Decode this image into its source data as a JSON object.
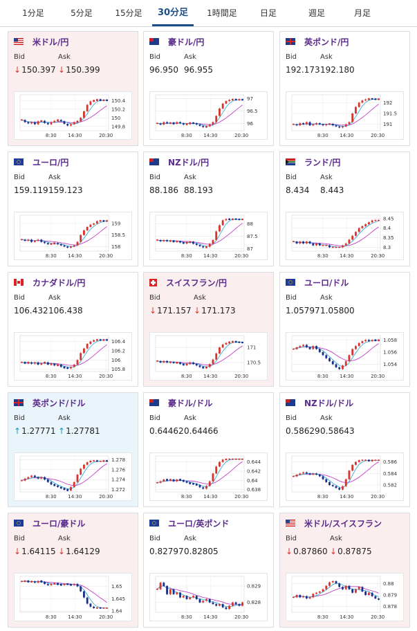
{
  "tabs": [
    {
      "label": "1分足",
      "active": false
    },
    {
      "label": "5分足",
      "active": false
    },
    {
      "label": "15分足",
      "active": false
    },
    {
      "label": "30分足",
      "active": true
    },
    {
      "label": "1時間足",
      "active": false
    },
    {
      "label": "日足",
      "active": false
    },
    {
      "label": "週足",
      "active": false
    },
    {
      "label": "月足",
      "active": false
    }
  ],
  "labels": {
    "bid": "Bid",
    "ask": "Ask"
  },
  "colors": {
    "up": "#d8342c",
    "down": "#1a2f8a",
    "ma": "#c23ec9",
    "ma2": "#1fa5d8",
    "arrow_down": "#d8342c",
    "arrow_up": "#1f8ec3"
  },
  "pairs": [
    {
      "name": "米ドル/円",
      "flag": "us",
      "bid": "150.397",
      "ask": "150.399",
      "dir": "down",
      "chart_data": {
        "type": "line",
        "x_ticks": [
          "8:30",
          "14:30",
          "20:30"
        ],
        "y_ticks": [
          "150.4",
          "150.2",
          "150",
          "149.8"
        ],
        "ylim": [
          149.7,
          150.5
        ],
        "series": [
          {
            "values": [
              149.95,
              149.9,
              149.87,
              149.9,
              149.85,
              149.92,
              149.93,
              149.88,
              149.85,
              149.9,
              149.93,
              149.95,
              149.92,
              149.86,
              149.82,
              149.85,
              149.9,
              149.92,
              150.0,
              150.15,
              150.3,
              150.38,
              150.4,
              150.42,
              150.4,
              150.41,
              150.4
            ]
          }
        ]
      }
    },
    {
      "name": "豪ドル/円",
      "flag": "au",
      "bid": "96.950",
      "ask": "96.955",
      "dir": "none",
      "chart_data": {
        "type": "line",
        "x_ticks": [
          "8:30",
          "14:30",
          "20:30"
        ],
        "y_ticks": [
          "97",
          "96.5",
          "96"
        ],
        "ylim": [
          95.7,
          97.1
        ],
        "series": [
          {
            "values": [
              96.0,
              95.95,
              96.05,
              96.0,
              96.02,
              95.98,
              96.05,
              96.0,
              95.95,
              95.98,
              96.02,
              96.0,
              95.95,
              95.9,
              95.85,
              95.88,
              95.95,
              96.05,
              96.3,
              96.6,
              96.8,
              96.9,
              96.95,
              96.97,
              96.95,
              96.96,
              96.95
            ]
          }
        ]
      }
    },
    {
      "name": "英ポンド/円",
      "flag": "gb",
      "bid": "192.173",
      "ask": "192.180",
      "dir": "none",
      "chart_data": {
        "type": "line",
        "x_ticks": [
          "8:30",
          "14:30",
          "20:30"
        ],
        "y_ticks": [
          "192",
          "191.5",
          "191"
        ],
        "ylim": [
          190.7,
          192.3
        ],
        "series": [
          {
            "values": [
              191.0,
              190.95,
              191.05,
              191.0,
              191.1,
              190.95,
              191.0,
              191.05,
              191.0,
              190.95,
              191.0,
              191.02,
              190.95,
              190.9,
              190.85,
              190.9,
              191.0,
              191.1,
              191.5,
              191.8,
              192.0,
              192.1,
              192.15,
              192.18,
              192.17,
              192.15,
              192.17
            ]
          }
        ]
      }
    },
    {
      "name": "ユーロ/円",
      "flag": "eu",
      "bid": "159.119",
      "ask": "159.123",
      "dir": "none",
      "chart_data": {
        "type": "line",
        "x_ticks": [
          "8:30",
          "14:30",
          "20:30"
        ],
        "y_ticks": [
          "159",
          "158.5",
          "158"
        ],
        "ylim": [
          157.8,
          159.3
        ],
        "series": [
          {
            "values": [
              158.3,
              158.25,
              158.3,
              158.2,
              158.25,
              158.3,
              158.2,
              158.15,
              158.1,
              158.12,
              158.15,
              158.1,
              158.05,
              158.0,
              157.95,
              158.0,
              158.05,
              158.2,
              158.5,
              158.7,
              158.85,
              158.95,
              159.0,
              159.1,
              159.12,
              159.1,
              159.12
            ]
          }
        ]
      }
    },
    {
      "name": "NZドル/円",
      "flag": "nz",
      "bid": "88.186",
      "ask": "88.193",
      "dir": "none",
      "chart_data": {
        "type": "line",
        "x_ticks": [
          "8:30",
          "14:30",
          "20:30"
        ],
        "y_ticks": [
          "88",
          "87.5",
          "87"
        ],
        "ylim": [
          86.9,
          88.3
        ],
        "series": [
          {
            "values": [
              87.35,
              87.3,
              87.35,
              87.3,
              87.32,
              87.28,
              87.3,
              87.25,
              87.22,
              87.25,
              87.28,
              87.2,
              87.15,
              87.1,
              87.05,
              87.08,
              87.2,
              87.35,
              87.7,
              87.95,
              88.15,
              88.2,
              88.18,
              88.2,
              88.19,
              88.18,
              88.19
            ]
          }
        ]
      }
    },
    {
      "name": "ランド/円",
      "flag": "za",
      "bid": "8.434",
      "ask": "8.443",
      "dir": "none",
      "chart_data": {
        "type": "line",
        "x_ticks": [
          "8:30",
          "14:30",
          "20:30"
        ],
        "y_ticks": [
          "8.45",
          "8.4",
          "8.35",
          "8.3"
        ],
        "ylim": [
          8.28,
          8.46
        ],
        "series": [
          {
            "values": [
              8.33,
              8.32,
              8.33,
              8.32,
              8.33,
              8.32,
              8.31,
              8.32,
              8.31,
              8.31,
              8.31,
              8.3,
              8.3,
              8.3,
              8.3,
              8.31,
              8.32,
              8.34,
              8.36,
              8.38,
              8.4,
              8.41,
              8.42,
              8.43,
              8.44,
              8.44,
              8.44
            ]
          }
        ]
      }
    },
    {
      "name": "カナダドル/円",
      "flag": "ca",
      "bid": "106.432",
      "ask": "106.438",
      "dir": "none",
      "chart_data": {
        "type": "line",
        "x_ticks": [
          "8:30",
          "14:30",
          "20:30"
        ],
        "y_ticks": [
          "106.4",
          "106.2",
          "106",
          "105.8"
        ],
        "ylim": [
          105.75,
          106.5
        ],
        "series": [
          {
            "values": [
              105.95,
              105.93,
              105.95,
              105.92,
              105.95,
              105.9,
              105.93,
              105.95,
              105.9,
              105.92,
              105.88,
              105.9,
              105.85,
              105.83,
              105.82,
              105.85,
              105.9,
              106.0,
              106.15,
              106.25,
              106.35,
              106.4,
              106.43,
              106.44,
              106.43,
              106.44,
              106.43
            ]
          }
        ]
      }
    },
    {
      "name": "スイスフラン/円",
      "flag": "ch",
      "bid": "171.157",
      "ask": "171.173",
      "dir": "down",
      "chart_data": {
        "type": "line",
        "x_ticks": [
          "8:30",
          "14:30",
          "20:30"
        ],
        "y_ticks": [
          "171",
          "170.5"
        ],
        "ylim": [
          170.2,
          171.35
        ],
        "series": [
          {
            "values": [
              170.55,
              170.5,
              170.55,
              170.5,
              170.52,
              170.48,
              170.5,
              170.45,
              170.42,
              170.45,
              170.5,
              170.45,
              170.4,
              170.35,
              170.32,
              170.35,
              170.45,
              170.6,
              170.8,
              171.0,
              171.1,
              171.15,
              171.18,
              171.2,
              171.18,
              171.17,
              171.16
            ]
          }
        ]
      }
    },
    {
      "name": "ユーロ/ドル",
      "flag": "eu",
      "bid": "1.05797",
      "ask": "1.05800",
      "dir": "none",
      "chart_data": {
        "type": "line",
        "x_ticks": [
          "8:30",
          "14:30",
          "20:30"
        ],
        "y_ticks": [
          "1.058",
          "1.056",
          "1.054"
        ],
        "ylim": [
          1.0528,
          1.0585
        ],
        "series": [
          {
            "values": [
              1.0565,
              1.0568,
              1.057,
              1.0572,
              1.0568,
              1.0565,
              1.057,
              1.0565,
              1.056,
              1.0555,
              1.055,
              1.0545,
              1.054,
              1.0535,
              1.0532,
              1.0538,
              1.0545,
              1.0555,
              1.0565,
              1.057,
              1.0575,
              1.0578,
              1.058,
              1.0578,
              1.058,
              1.0579,
              1.058
            ]
          }
        ]
      }
    },
    {
      "name": "英ポンド/ドル",
      "flag": "gb",
      "bid": "1.27771",
      "ask": "1.27781",
      "dir": "up",
      "chart_data": {
        "type": "line",
        "x_ticks": [
          "8:30",
          "14:30",
          "20:30"
        ],
        "y_ticks": [
          "1.278",
          "1.276",
          "1.274",
          "1.272"
        ],
        "ylim": [
          1.2715,
          1.2785
        ],
        "series": [
          {
            "values": [
              1.2738,
              1.2742,
              1.2745,
              1.2748,
              1.2745,
              1.2742,
              1.2745,
              1.274,
              1.2735,
              1.273,
              1.2728,
              1.2725,
              1.2722,
              1.272,
              1.2718,
              1.2725,
              1.2735,
              1.275,
              1.2762,
              1.277,
              1.2775,
              1.2778,
              1.2778,
              1.2777,
              1.2777,
              1.2778,
              1.2777
            ]
          }
        ]
      }
    },
    {
      "name": "豪ドル/ドル",
      "flag": "au",
      "bid": "0.64462",
      "ask": "0.64466",
      "dir": "none",
      "chart_data": {
        "type": "line",
        "x_ticks": [
          "8:30",
          "14:30",
          "20:30"
        ],
        "y_ticks": [
          "0.644",
          "0.642",
          "0.64",
          "0.638"
        ],
        "ylim": [
          0.6375,
          0.645
        ],
        "series": [
          {
            "values": [
              0.6395,
              0.6398,
              0.6402,
              0.64,
              0.6402,
              0.6398,
              0.6402,
              0.64,
              0.6398,
              0.6395,
              0.6393,
              0.6392,
              0.639,
              0.6385,
              0.6382,
              0.6388,
              0.6398,
              0.6415,
              0.643,
              0.644,
              0.6445,
              0.6446,
              0.6446,
              0.6446,
              0.6446,
              0.6446,
              0.6446
            ]
          }
        ]
      }
    },
    {
      "name": "NZドル/ドル",
      "flag": "nz",
      "bid": "0.58629",
      "ask": "0.58643",
      "dir": "none",
      "chart_data": {
        "type": "line",
        "x_ticks": [
          "8:30",
          "14:30",
          "20:30"
        ],
        "y_ticks": [
          "0.586",
          "0.584",
          "0.582"
        ],
        "ylim": [
          0.5808,
          0.5868
        ],
        "series": [
          {
            "values": [
              0.5835,
              0.5838,
              0.584,
              0.5842,
              0.584,
              0.5838,
              0.584,
              0.5838,
              0.5835,
              0.583,
              0.5825,
              0.582,
              0.5818,
              0.5815,
              0.5812,
              0.5818,
              0.583,
              0.5845,
              0.5855,
              0.586,
              0.5863,
              0.5863,
              0.5863,
              0.5862,
              0.5863,
              0.5863,
              0.5863
            ]
          }
        ]
      }
    },
    {
      "name": "ユーロ/豪ドル",
      "flag": "eu",
      "bid": "1.64115",
      "ask": "1.64129",
      "dir": "down",
      "chart_data": {
        "type": "line",
        "x_ticks": [
          "8:30",
          "14:30",
          "20:30"
        ],
        "y_ticks": [
          "1.65",
          "1.645",
          "1.64"
        ],
        "ylim": [
          1.6395,
          1.6535
        ],
        "series": [
          {
            "values": [
              1.652,
              1.6522,
              1.6518,
              1.652,
              1.6515,
              1.6522,
              1.6518,
              1.651,
              1.6505,
              1.651,
              1.6512,
              1.6508,
              1.6505,
              1.651,
              1.6508,
              1.6505,
              1.651,
              1.65,
              1.648,
              1.6455,
              1.643,
              1.6418,
              1.6412,
              1.6413,
              1.6412,
              1.6412,
              1.6412
            ]
          }
        ]
      }
    },
    {
      "name": "ユーロ/英ポンド",
      "flag": "eu",
      "bid": "0.82797",
      "ask": "0.82805",
      "dir": "none",
      "chart_data": {
        "type": "line",
        "x_ticks": [
          "8:30",
          "14:30",
          "20:30"
        ],
        "y_ticks": [
          "0.829",
          "0.828"
        ],
        "ylim": [
          0.8274,
          0.8295
        ],
        "series": [
          {
            "values": [
              0.8288,
              0.8292,
              0.829,
              0.8285,
              0.8288,
              0.8285,
              0.8286,
              0.8283,
              0.8284,
              0.8282,
              0.8283,
              0.8284,
              0.8282,
              0.828,
              0.8281,
              0.8282,
              0.828,
              0.8279,
              0.8278,
              0.8279,
              0.8277,
              0.8276,
              0.8278,
              0.828,
              0.8279,
              0.8278,
              0.828
            ]
          }
        ]
      }
    },
    {
      "name": "米ドル/スイスフラン",
      "flag": "us",
      "bid": "0.87860",
      "ask": "0.87875",
      "dir": "down",
      "chart_data": {
        "type": "line",
        "x_ticks": [
          "8:30",
          "14:30",
          "20:30"
        ],
        "y_ticks": [
          "0.88",
          "0.879",
          "0.878"
        ],
        "ylim": [
          0.8775,
          0.8805
        ],
        "series": [
          {
            "values": [
              0.8788,
              0.879,
              0.8788,
              0.8789,
              0.8787,
              0.8788,
              0.8791,
              0.8792,
              0.8793,
              0.8795,
              0.8798,
              0.8801,
              0.8802,
              0.88,
              0.8797,
              0.8795,
              0.8798,
              0.8795,
              0.8792,
              0.8795,
              0.8797,
              0.8793,
              0.879,
              0.8792,
              0.8789,
              0.8787,
              0.8786
            ]
          }
        ]
      }
    }
  ]
}
